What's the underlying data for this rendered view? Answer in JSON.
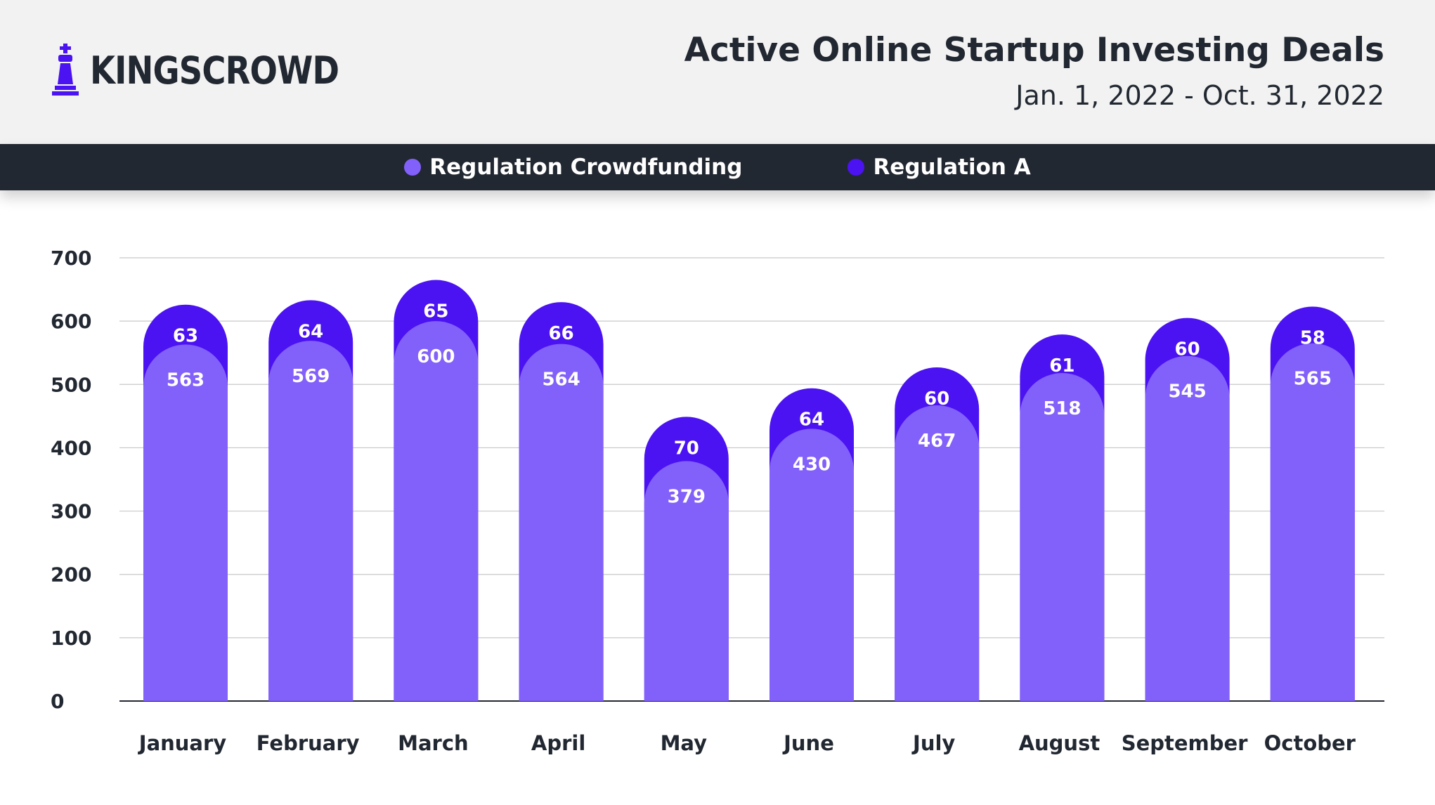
{
  "brand": {
    "name": "KINGSCROWD",
    "logo_icon": "chess-king-icon"
  },
  "title": "Active Online Startup Investing Deals",
  "subtitle": "Jan. 1, 2022 - Oct. 31, 2022",
  "colors": {
    "regulation_crowdfunding": "#8260fa",
    "regulation_a": "#4b12f2",
    "header_bg": "#f2f2f2",
    "legend_bg": "#222831",
    "text": "#222831"
  },
  "legend": [
    {
      "label": "Regulation Crowdfunding",
      "color": "#8260fa"
    },
    {
      "label": "Regulation A",
      "color": "#4b12f2"
    }
  ],
  "chart_data": {
    "type": "bar",
    "stacked": true,
    "categories": [
      "January",
      "February",
      "March",
      "April",
      "May",
      "June",
      "July",
      "August",
      "September",
      "October"
    ],
    "series": [
      {
        "name": "Regulation Crowdfunding",
        "values": [
          563,
          569,
          600,
          564,
          379,
          430,
          467,
          518,
          545,
          565
        ]
      },
      {
        "name": "Regulation A",
        "values": [
          63,
          64,
          65,
          66,
          70,
          64,
          60,
          61,
          60,
          58
        ]
      }
    ],
    "yticks": [
      0,
      100,
      200,
      300,
      400,
      500,
      600,
      700
    ],
    "ylim": [
      0,
      700
    ],
    "grid": true,
    "legend_position": "top-center"
  }
}
